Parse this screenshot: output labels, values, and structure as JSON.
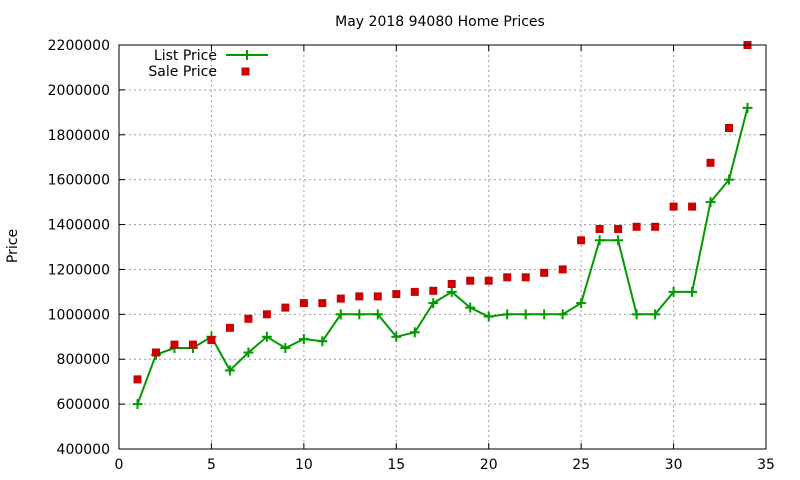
{
  "chart_data": {
    "type": "line",
    "title": "May 2018 94080 Home Prices",
    "xlabel": "",
    "ylabel": "Price",
    "xlim": [
      0,
      35
    ],
    "ylim": [
      400000,
      2200000
    ],
    "x_ticks": [
      0,
      5,
      10,
      15,
      20,
      25,
      30,
      35
    ],
    "y_ticks": [
      400000,
      600000,
      800000,
      1000000,
      1200000,
      1400000,
      1600000,
      1800000,
      2000000,
      2200000
    ],
    "grid": true,
    "legend_position": "top-left",
    "series": [
      {
        "name": "List Price",
        "style": "linespoints",
        "marker": "plus",
        "color": "#009900",
        "x": [
          1,
          2,
          3,
          4,
          5,
          6,
          7,
          8,
          9,
          10,
          11,
          12,
          13,
          14,
          15,
          16,
          17,
          18,
          19,
          20,
          21,
          22,
          23,
          24,
          25,
          26,
          27,
          28,
          29,
          30,
          31,
          32,
          33,
          34
        ],
        "values": [
          600000,
          820000,
          850000,
          850000,
          900000,
          750000,
          830000,
          900000,
          850000,
          890000,
          880000,
          1000000,
          1000000,
          1000000,
          900000,
          920000,
          1050000,
          1100000,
          1030000,
          990000,
          1000000,
          1000000,
          1000000,
          1000000,
          1050000,
          1330000,
          1330000,
          1000000,
          1000000,
          1100000,
          1100000,
          1500000,
          1600000,
          1920000
        ]
      },
      {
        "name": "Sale Price",
        "style": "points",
        "marker": "square",
        "color": "#cc0000",
        "x": [
          1,
          2,
          3,
          4,
          5,
          6,
          7,
          8,
          9,
          10,
          11,
          12,
          13,
          14,
          15,
          16,
          17,
          18,
          19,
          20,
          21,
          22,
          23,
          24,
          25,
          26,
          27,
          28,
          29,
          30,
          31,
          32,
          33,
          34
        ],
        "values": [
          710000,
          830000,
          865000,
          865000,
          885000,
          940000,
          980000,
          1000000,
          1030000,
          1050000,
          1050000,
          1070000,
          1080000,
          1080000,
          1090000,
          1100000,
          1105000,
          1135000,
          1150000,
          1150000,
          1165000,
          1165000,
          1185000,
          1200000,
          1330000,
          1380000,
          1380000,
          1390000,
          1390000,
          1480000,
          1480000,
          1675000,
          1830000,
          2200000
        ]
      }
    ]
  }
}
